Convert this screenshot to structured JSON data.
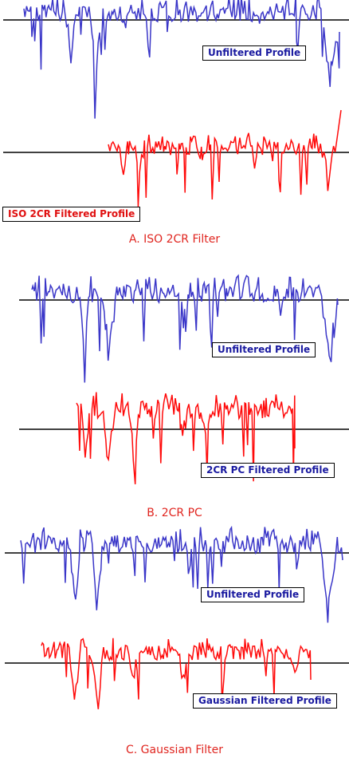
{
  "colors": {
    "unfiltered": "#3a36c8",
    "filtered": "#ff0a0a",
    "baseline": "#000000",
    "caption": "#e0251f"
  },
  "panels": [
    {
      "unfiltered_label": "Unfiltered Profile",
      "filtered_label": "ISO 2CR Filtered Profile",
      "caption": "A. ISO 2CR Filter"
    },
    {
      "unfiltered_label": "Unfiltered Profile",
      "filtered_label": "2CR PC Filtered Profile",
      "caption": "B. 2CR PC"
    },
    {
      "unfiltered_label": "Unfiltered Profile",
      "filtered_label": "Gaussian Filtered Profile",
      "caption": "C. Gaussian Filter"
    }
  ]
}
